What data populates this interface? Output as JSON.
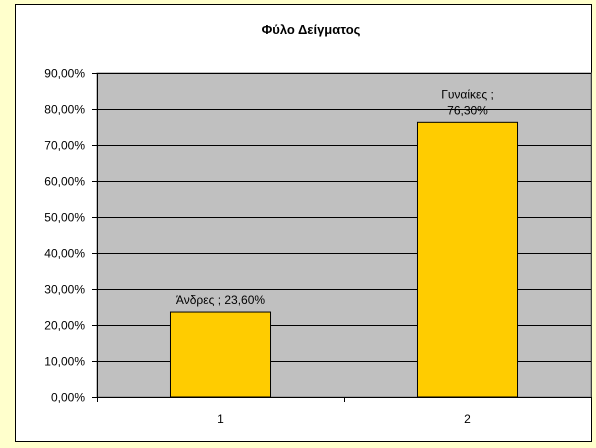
{
  "chart_data": {
    "type": "bar",
    "title": "Φύλο Δείγματος",
    "categories": [
      "1",
      "2"
    ],
    "values": [
      23.6,
      76.3
    ],
    "value_unit": "%",
    "data_labels": [
      [
        "Άνδρες ; 23,60%"
      ],
      [
        "Γυναίκες ;",
        "76,30%"
      ]
    ],
    "ylim": [
      0,
      90
    ],
    "y_ticks": [
      0,
      10,
      20,
      30,
      40,
      50,
      60,
      70,
      80,
      90
    ],
    "y_tick_labels": [
      "0,00%",
      "10,00%",
      "20,00%",
      "30,00%",
      "40,00%",
      "50,00%",
      "60,00%",
      "70,00%",
      "80,00%",
      "90,00%"
    ],
    "grid": true,
    "legend": "none",
    "colors": {
      "bar_fill": "#ffcc00",
      "plot_background": "#c0c0c0",
      "page_background": "#ffffcc",
      "chart_background": "#ffffff"
    }
  }
}
